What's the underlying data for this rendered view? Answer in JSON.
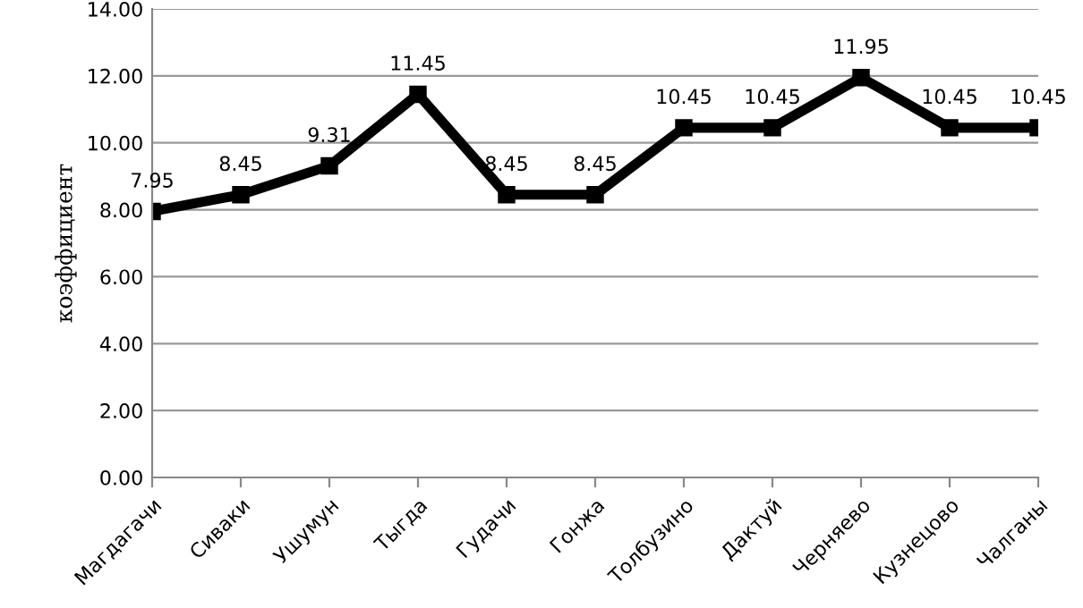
{
  "chart_data": {
    "type": "line",
    "ylabel": "коэффициент",
    "categories": [
      "Магдагачи",
      "Сиваки",
      "Ушумун",
      "Тыгда",
      "Гудачи",
      "Гонжа",
      "Толбузино",
      "Дактуй",
      "Черняево",
      "Кузнецово",
      "Чалганы"
    ],
    "series": [
      {
        "color": "#000000",
        "values": [
          7.95,
          8.45,
          9.31,
          11.45,
          8.45,
          8.45,
          10.45,
          10.45,
          11.95,
          10.45,
          10.45
        ]
      }
    ],
    "ylim": [
      0,
      14
    ],
    "yticks": [
      {
        "value": 0,
        "label": "0.00"
      },
      {
        "value": 2,
        "label": "2.00"
      },
      {
        "value": 4,
        "label": "4.00"
      },
      {
        "value": 6,
        "label": "6.00"
      },
      {
        "value": 8,
        "label": "8.00"
      },
      {
        "value": 10,
        "label": "10.00"
      },
      {
        "value": 12,
        "label": "12.00"
      },
      {
        "value": 14,
        "label": "14.00"
      }
    ],
    "grid": "y",
    "data_labels": true,
    "marker": "square",
    "line_style": "solid"
  }
}
